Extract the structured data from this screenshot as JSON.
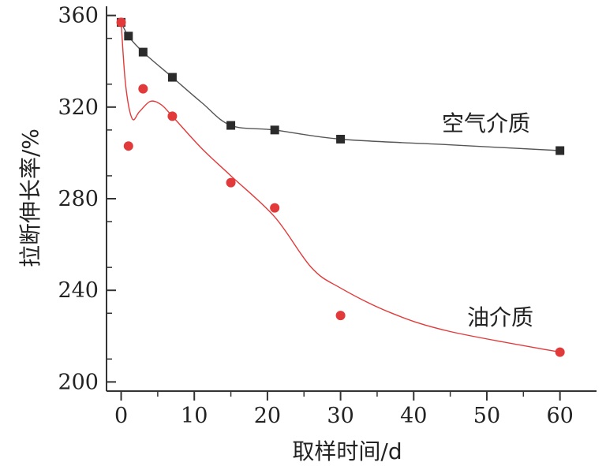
{
  "chart_data": {
    "type": "scatter",
    "xlabel": "取样时间/d",
    "ylabel": "拉断伸长率/%",
    "xlim": [
      -2,
      65
    ],
    "ylim": [
      196,
      364
    ],
    "xticks": [
      0,
      10,
      20,
      30,
      40,
      50,
      60
    ],
    "yticks": [
      200,
      240,
      280,
      320,
      360
    ],
    "grid": false,
    "series": [
      {
        "name": "空气介质",
        "marker": "square",
        "color": "#2b2b2b",
        "x": [
          0,
          1,
          3,
          7,
          15,
          21,
          30,
          60
        ],
        "y": [
          357,
          351,
          344,
          333,
          312,
          310,
          306,
          301
        ],
        "fit_curve": [
          [
            0,
            357
          ],
          [
            1,
            351
          ],
          [
            3,
            344
          ],
          [
            7,
            333
          ],
          [
            11,
            322
          ],
          [
            15,
            312
          ],
          [
            21,
            310
          ],
          [
            30,
            306
          ],
          [
            45,
            303.5
          ],
          [
            60,
            301
          ]
        ]
      },
      {
        "name": "油介质",
        "marker": "circle",
        "color": "#e23a3a",
        "x": [
          0,
          1,
          3,
          7,
          15,
          21,
          30,
          60
        ],
        "y": [
          357,
          303,
          328,
          316,
          287,
          276,
          229,
          213
        ],
        "fit_curve": [
          [
            0,
            357
          ],
          [
            0.6,
            330
          ],
          [
            1.5,
            315
          ],
          [
            2.5,
            318
          ],
          [
            4,
            322.5
          ],
          [
            5.5,
            321
          ],
          [
            7,
            316
          ],
          [
            11,
            302
          ],
          [
            15,
            290
          ],
          [
            21,
            272
          ],
          [
            26,
            250
          ],
          [
            30,
            241
          ],
          [
            37,
            230
          ],
          [
            45,
            222
          ],
          [
            60,
            213
          ]
        ]
      }
    ]
  }
}
